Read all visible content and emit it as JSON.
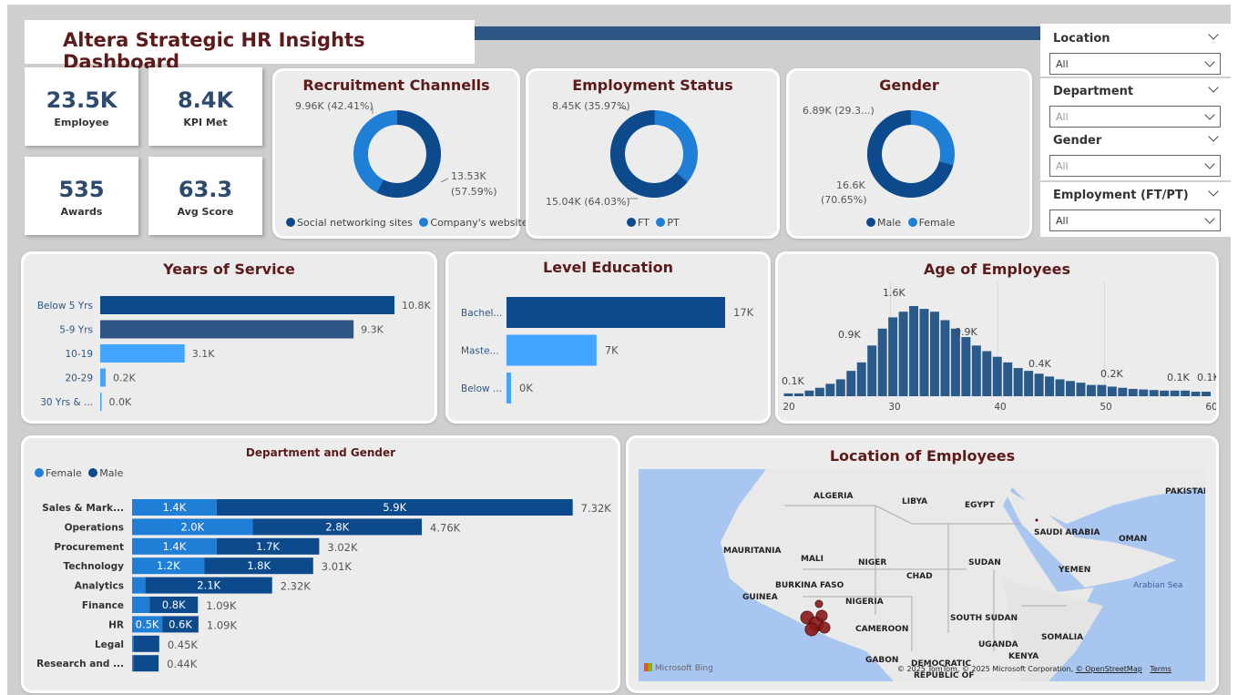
{
  "title": "Altera Strategic HR Insights Dashboard",
  "kpis": [
    {
      "value": "23.5K",
      "label": "Employee"
    },
    {
      "value": "8.4K",
      "label": "KPI Met"
    },
    {
      "value": "535",
      "label": "Awards"
    },
    {
      "value": "63.3",
      "label": "Avg Score"
    }
  ],
  "filters": [
    {
      "label": "Location",
      "value": "All"
    },
    {
      "label": "Department",
      "value": "All"
    },
    {
      "label": "Gender",
      "value": "All"
    },
    {
      "label": "Employment (FT/PT)",
      "value": "All"
    }
  ],
  "colors": {
    "dark_blue": "#0d4a8b",
    "light_blue": "#1f7fd6",
    "bar_light": "#42a5ff",
    "hist": "#2a5a8a",
    "title_red": "#5c1a1a"
  },
  "recruitment": {
    "title": "Recruitment Channells",
    "label_a": "9.96K (42.41%)",
    "label_b1": "13.53K",
    "label_b2": "(57.59%)",
    "legend": [
      "Social networking sites",
      "Company's website"
    ]
  },
  "employment": {
    "title": "Employment Status",
    "label_a": "8.45K (35.97%)",
    "label_b": "15.04K (64.03%)",
    "legend": [
      "FT",
      "PT"
    ]
  },
  "gender": {
    "title": "Gender",
    "label_a": "6.89K (29.3...)",
    "label_b1": "16.6K",
    "label_b2": "(70.65%)",
    "legend": [
      "Male",
      "Female"
    ]
  },
  "years": {
    "title": "Years of Service",
    "rows": [
      {
        "cat": "Below 5 Yrs",
        "label": "10.8K"
      },
      {
        "cat": "5-9 Yrs",
        "label": "9.3K"
      },
      {
        "cat": "10-19",
        "label": "3.1K"
      },
      {
        "cat": "20-29",
        "label": "0.2K"
      },
      {
        "cat": "30 Yrs & ...",
        "label": "0.0K"
      }
    ]
  },
  "education": {
    "title": "Level Education",
    "rows": [
      {
        "cat": "Bachel...",
        "label": "17K"
      },
      {
        "cat": "Maste...",
        "label": "7K"
      },
      {
        "cat": "Below ...",
        "label": "0K"
      }
    ]
  },
  "age": {
    "title": "Age of Employees",
    "x_ticks": [
      "20",
      "30",
      "40",
      "50",
      "60"
    ],
    "labels": {
      "a": "0.1K",
      "b": "0.9K",
      "c": "1.6K",
      "d": "0.9K",
      "e": "0.4K",
      "f": "0.2K",
      "g": "0.1K",
      "h": "0.1K"
    }
  },
  "dept": {
    "title": "Department and Gender",
    "legend": [
      "Female",
      "Male"
    ],
    "rows": [
      {
        "cat": "Sales & Mark...",
        "female_label": "1.4K",
        "male_label": "5.9K",
        "total": "7.32K"
      },
      {
        "cat": "Operations",
        "female_label": "2.0K",
        "male_label": "2.8K",
        "total": "4.76K"
      },
      {
        "cat": "Procurement",
        "female_label": "1.4K",
        "male_label": "1.7K",
        "total": "3.02K"
      },
      {
        "cat": "Technology",
        "female_label": "1.2K",
        "male_label": "1.8K",
        "total": "3.01K"
      },
      {
        "cat": "Analytics",
        "female_label": "",
        "male_label": "2.1K",
        "total": "2.32K"
      },
      {
        "cat": "Finance",
        "female_label": "",
        "male_label": "0.8K",
        "total": "1.09K"
      },
      {
        "cat": "HR",
        "female_label": "0.5K",
        "male_label": "0.6K",
        "total": "1.09K"
      },
      {
        "cat": "Legal",
        "female_label": "",
        "male_label": "",
        "total": "0.45K"
      },
      {
        "cat": "Research and ...",
        "female_label": "",
        "male_label": "",
        "total": "0.44K"
      }
    ]
  },
  "map": {
    "title": "Location of Employees",
    "countries": [
      "ALGERIA",
      "LIBYA",
      "EGYPT",
      "PAKISTAN",
      "SAUDI ARABIA",
      "OMAN",
      "MAURITANIA",
      "MALI",
      "NIGER",
      "SUDAN",
      "CHAD",
      "YEMEN",
      "BURKINA FASO",
      "GUINEA",
      "NIGERIA",
      "CAMEROON",
      "SOUTH SUDAN",
      "SOMALIA",
      "UGANDA",
      "KENYA",
      "GABON",
      "DEMOCRATIC",
      "REPUBLIC OF"
    ],
    "sea": "Arabian Sea",
    "brand": "Microsoft Bing",
    "attribution": "© 2025 TomTom, © 2025 Microsoft Corporation,",
    "osm": "© OpenStreetMap",
    "terms": "Terms"
  },
  "chart_data": [
    {
      "type": "pie",
      "title": "Recruitment Channells",
      "categories": [
        "Social networking sites",
        "Company's website"
      ],
      "values": [
        13530,
        9960
      ]
    },
    {
      "type": "pie",
      "title": "Employment Status",
      "categories": [
        "FT",
        "PT"
      ],
      "values": [
        15040,
        8450
      ]
    },
    {
      "type": "pie",
      "title": "Gender",
      "categories": [
        "Male",
        "Female"
      ],
      "values": [
        16600,
        6890
      ]
    },
    {
      "type": "bar",
      "title": "Years of Service",
      "categories": [
        "Below 5 Yrs",
        "5-9 Yrs",
        "10-19",
        "20-29",
        "30 Yrs & ..."
      ],
      "values": [
        10800,
        9300,
        3100,
        200,
        0
      ]
    },
    {
      "type": "bar",
      "title": "Level Education",
      "categories": [
        "Bachel...",
        "Maste...",
        "Below ..."
      ],
      "values": [
        17000,
        7000,
        0
      ]
    },
    {
      "type": "bar",
      "title": "Age of Employees",
      "x": [
        20,
        21,
        22,
        23,
        24,
        25,
        26,
        27,
        28,
        29,
        30,
        31,
        32,
        33,
        34,
        35,
        36,
        37,
        38,
        39,
        40,
        41,
        42,
        43,
        44,
        45,
        46,
        47,
        48,
        49,
        50,
        51,
        52,
        53,
        54,
        55,
        56,
        57,
        58,
        59,
        60
      ],
      "values": [
        0.05,
        0.05,
        0.1,
        0.15,
        0.22,
        0.3,
        0.45,
        0.6,
        0.9,
        1.2,
        1.4,
        1.5,
        1.6,
        1.55,
        1.5,
        1.35,
        1.2,
        1.05,
        0.9,
        0.8,
        0.7,
        0.6,
        0.5,
        0.45,
        0.4,
        0.35,
        0.3,
        0.27,
        0.24,
        0.2,
        0.2,
        0.17,
        0.15,
        0.13,
        0.12,
        0.11,
        0.1,
        0.1,
        0.1,
        0.08,
        0.08
      ]
    },
    {
      "type": "bar",
      "title": "Department and Gender",
      "categories": [
        "Sales & Mark...",
        "Operations",
        "Procurement",
        "Technology",
        "Analytics",
        "Finance",
        "HR",
        "Legal",
        "Research and ..."
      ],
      "series": [
        {
          "name": "Female",
          "values": [
            1.4,
            2.0,
            1.4,
            1.2,
            0.22,
            0.29,
            0.5,
            0.03,
            0.02
          ]
        },
        {
          "name": "Male",
          "values": [
            5.9,
            2.8,
            1.7,
            1.8,
            2.1,
            0.8,
            0.6,
            0.42,
            0.42
          ]
        }
      ]
    }
  ]
}
